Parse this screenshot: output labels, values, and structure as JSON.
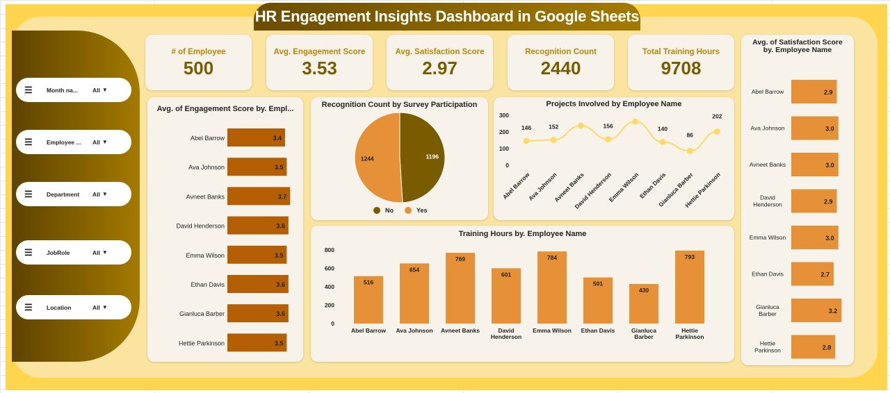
{
  "title": "HR Engagement Insights Dashboard in Google Sheets",
  "filters": [
    {
      "label": "Month na...",
      "value": "All"
    },
    {
      "label": "Employee ...",
      "value": "All"
    },
    {
      "label": "Department",
      "value": "All"
    },
    {
      "label": "JobRole",
      "value": "All"
    },
    {
      "label": "Location",
      "value": "All"
    }
  ],
  "kpis": [
    {
      "label": "# of Employee",
      "value": "500"
    },
    {
      "label": "Avg. Engagement Score",
      "value": "3.53"
    },
    {
      "label": "Avg. Satisfaction Score",
      "value": "2.97"
    },
    {
      "label": "Recognition Count",
      "value": "2440"
    },
    {
      "label": "Total Training Hours",
      "value": "9708"
    }
  ],
  "colors": {
    "dark": "#7a5c00",
    "bar_dark": "#b45f06",
    "bar": "#e69138",
    "line": "#ffd966"
  },
  "chart_data": [
    {
      "type": "bar",
      "orientation": "horizontal",
      "title": "Avg. of Engagement Score by. Empl...",
      "categories": [
        "Abel Barrow",
        "Ava Johnson",
        "Avneet Banks",
        "David Henderson",
        "Emma Wilson",
        "Ethan Davis",
        "Gianluca Barber",
        "Hettie Parkinson"
      ],
      "values": [
        3.4,
        3.5,
        3.7,
        3.6,
        3.5,
        3.6,
        3.6,
        3.5
      ]
    },
    {
      "type": "pie",
      "title": "Recognition Count by Survey Participation",
      "categories": [
        "No",
        "Yes"
      ],
      "values": [
        1196,
        1244
      ],
      "legend": "bottom"
    },
    {
      "type": "line",
      "title": "Projects Involved by Employee Name",
      "categories": [
        "Abel Barrow",
        "Ava Johnson",
        "Avneet Banks",
        "David Henderson",
        "Emma Wilson",
        "Ethan Davis",
        "Gianluca Barber",
        "Hettie Parkinson"
      ],
      "values": [
        146,
        152,
        237,
        156,
        262,
        140,
        86,
        202
      ],
      "labels": [
        "146",
        "152",
        "",
        "156",
        "",
        "140",
        "86",
        "202"
      ],
      "ylim": [
        0,
        300
      ],
      "yticks": [
        "0",
        "100",
        "200",
        "300"
      ]
    },
    {
      "type": "bar",
      "title": "Training Hours by. Employee Name",
      "categories": [
        "Abel Barrow",
        "Ava Johnson",
        "Avneet Banks",
        "David Henderson",
        "Emma Wilson",
        "Ethan Davis",
        "Gianluca Barber",
        "Hettie Parkinson"
      ],
      "values": [
        516,
        654,
        769,
        601,
        784,
        501,
        430,
        793
      ],
      "ylim": [
        0,
        800
      ],
      "yticks": [
        "0",
        "200",
        "400",
        "600",
        "800"
      ]
    },
    {
      "type": "bar",
      "orientation": "horizontal",
      "title": "Avg. of Satisfaction Score by. Employee Name",
      "categories": [
        "Abel Barrow",
        "Ava Johnson",
        "Avneet Banks",
        "David Henderson",
        "Emma Wilson",
        "Ethan Davis",
        "Gianluca Barber",
        "Hettie Parkinson"
      ],
      "values": [
        2.9,
        3.0,
        3.0,
        2.9,
        3.0,
        2.7,
        3.2,
        2.8
      ],
      "labels": [
        "2.9",
        "3.0",
        "3.0",
        "2.9",
        "3.0",
        "2.7",
        "3.2",
        "2.8"
      ]
    }
  ]
}
